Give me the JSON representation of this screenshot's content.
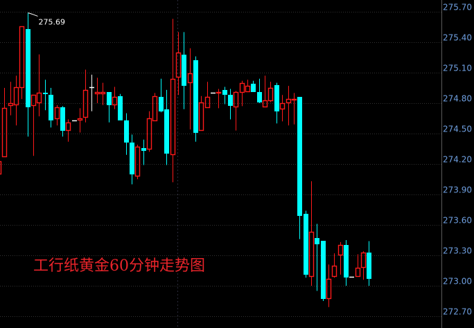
{
  "chart_data": {
    "type": "candlestick",
    "title": "工行纸黄金60分钟走势图",
    "xlabel": "",
    "ylabel": "",
    "ylim": [
      272.7,
      275.7
    ],
    "yticks": [
      "275.70",
      "275.40",
      "275.10",
      "274.80",
      "274.50",
      "274.20",
      "273.90",
      "273.60",
      "273.30",
      "273.00",
      "272.70"
    ],
    "grid": true,
    "annotation": {
      "label": "275.69",
      "candle_index": 5
    },
    "colors": {
      "up": "#ff1a1a",
      "down": "#00ffff",
      "flat": "#ffffff",
      "background": "#000000",
      "axis_text": "#6f9fe0",
      "title": "#e8242a"
    },
    "candles_ohlc": [
      [
        274.1,
        274.23,
        274.1,
        274.23
      ],
      [
        274.27,
        274.95,
        274.27,
        274.75
      ],
      [
        274.77,
        275.01,
        274.68,
        274.8
      ],
      [
        274.78,
        275.07,
        274.58,
        274.96
      ],
      [
        274.95,
        275.56,
        274.84,
        275.56
      ],
      [
        275.53,
        275.69,
        274.47,
        274.76
      ],
      [
        274.77,
        274.88,
        274.28,
        274.88
      ],
      [
        274.8,
        275.28,
        274.67,
        274.9
      ],
      [
        274.9,
        275.03,
        274.73,
        274.89
      ],
      [
        274.88,
        274.95,
        274.56,
        274.63
      ],
      [
        274.64,
        274.78,
        274.58,
        274.76
      ],
      [
        274.76,
        274.77,
        274.47,
        274.53
      ],
      [
        274.53,
        274.64,
        274.42,
        274.61
      ],
      [
        274.63,
        274.63,
        274.63,
        274.63
      ],
      [
        274.63,
        274.75,
        274.51,
        274.65
      ],
      [
        274.66,
        275.13,
        274.61,
        274.93
      ],
      [
        274.96,
        275.08,
        274.72,
        274.96
      ],
      [
        274.89,
        275.05,
        274.8,
        274.91
      ],
      [
        274.89,
        275.0,
        274.78,
        274.91
      ],
      [
        274.91,
        274.91,
        274.61,
        274.78
      ],
      [
        274.78,
        274.96,
        274.74,
        274.86
      ],
      [
        274.87,
        274.89,
        274.63,
        274.63
      ],
      [
        274.63,
        274.7,
        274.29,
        274.41
      ],
      [
        274.41,
        274.49,
        274.0,
        274.1
      ],
      [
        274.08,
        274.39,
        274.05,
        274.37
      ],
      [
        274.36,
        274.44,
        274.19,
        274.33
      ],
      [
        274.34,
        274.72,
        274.32,
        274.65
      ],
      [
        274.62,
        274.9,
        274.62,
        274.87
      ],
      [
        274.86,
        275.04,
        274.71,
        274.72
      ],
      [
        274.74,
        274.93,
        274.19,
        274.3
      ],
      [
        274.29,
        275.63,
        274.02,
        275.04
      ],
      [
        275.05,
        275.5,
        274.88,
        275.3
      ],
      [
        275.28,
        275.5,
        274.74,
        274.97
      ],
      [
        275.0,
        275.34,
        274.54,
        275.09
      ],
      [
        275.22,
        275.26,
        274.42,
        274.51
      ],
      [
        274.53,
        274.87,
        274.53,
        274.81
      ],
      [
        274.75,
        275.01,
        274.75,
        274.86
      ],
      [
        274.9,
        274.9,
        274.9,
        274.9
      ],
      [
        274.9,
        274.94,
        274.75,
        274.91
      ],
      [
        274.93,
        274.96,
        274.79,
        274.88
      ],
      [
        274.88,
        274.94,
        274.64,
        274.77
      ],
      [
        274.76,
        274.92,
        274.53,
        274.91
      ],
      [
        274.9,
        275.02,
        274.77,
        275.0
      ],
      [
        274.91,
        275.03,
        274.91,
        274.97
      ],
      [
        274.99,
        275.02,
        274.91,
        274.91
      ],
      [
        274.91,
        275.04,
        274.8,
        274.81
      ],
      [
        274.76,
        275.07,
        274.76,
        274.83
      ],
      [
        274.82,
        275.01,
        274.81,
        274.95
      ],
      [
        274.98,
        275.0,
        274.6,
        274.72
      ],
      [
        274.74,
        274.88,
        274.62,
        274.8
      ],
      [
        274.8,
        274.97,
        274.58,
        274.84
      ],
      [
        274.83,
        274.9,
        274.59,
        274.84
      ],
      [
        274.86,
        274.86,
        273.46,
        273.69
      ],
      [
        273.71,
        273.74,
        273.08,
        273.11
      ],
      [
        273.09,
        274.03,
        273.0,
        273.53
      ],
      [
        273.47,
        273.61,
        272.95,
        273.41
      ],
      [
        273.44,
        273.44,
        272.85,
        272.87
      ],
      [
        272.87,
        273.21,
        272.79,
        273.07
      ],
      [
        273.09,
        273.32,
        273.08,
        273.2
      ],
      [
        273.3,
        273.43,
        273.11,
        273.4
      ],
      [
        273.4,
        273.45,
        273.0,
        273.08
      ],
      [
        273.09,
        273.09,
        273.09,
        273.09
      ],
      [
        273.09,
        273.31,
        273.09,
        273.18
      ],
      [
        273.18,
        273.34,
        273.06,
        273.33
      ],
      [
        273.33,
        273.44,
        273.0,
        273.07
      ]
    ]
  }
}
